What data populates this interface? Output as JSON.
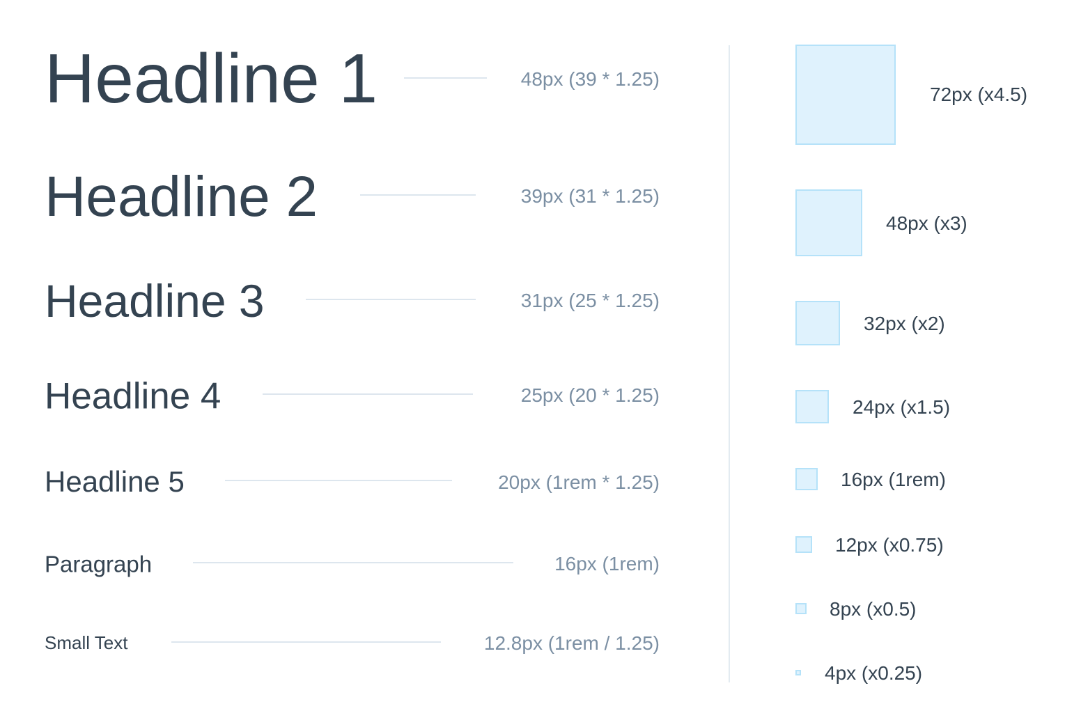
{
  "typography": [
    {
      "label": "Headline 1",
      "spec": "48px (39 * 1.25)"
    },
    {
      "label": "Headline 2",
      "spec": "39px (31 * 1.25)"
    },
    {
      "label": "Headline 3",
      "spec": "31px (25 * 1.25)"
    },
    {
      "label": "Headline 4",
      "spec": "25px (20 * 1.25)"
    },
    {
      "label": "Headline 5",
      "spec": "20px (1rem * 1.25)"
    },
    {
      "label": "Paragraph",
      "spec": "16px (1rem)"
    },
    {
      "label": "Small Text",
      "spec": "12.8px (1rem / 1.25)"
    }
  ],
  "spacing": [
    {
      "label": "72px (x4.5)"
    },
    {
      "label": "48px (x3)"
    },
    {
      "label": "32px (x2)"
    },
    {
      "label": "24px (x1.5)"
    },
    {
      "label": "16px (1rem)"
    },
    {
      "label": "12px (x0.75)"
    },
    {
      "label": "8px (x0.5)"
    },
    {
      "label": "4px (x0.25)"
    }
  ],
  "colors": {
    "text": "#344351",
    "spec": "#7b8fa3",
    "rule": "#dde6ee",
    "swatch_fill": "#dff2fd",
    "swatch_border": "#b5e2f9"
  }
}
